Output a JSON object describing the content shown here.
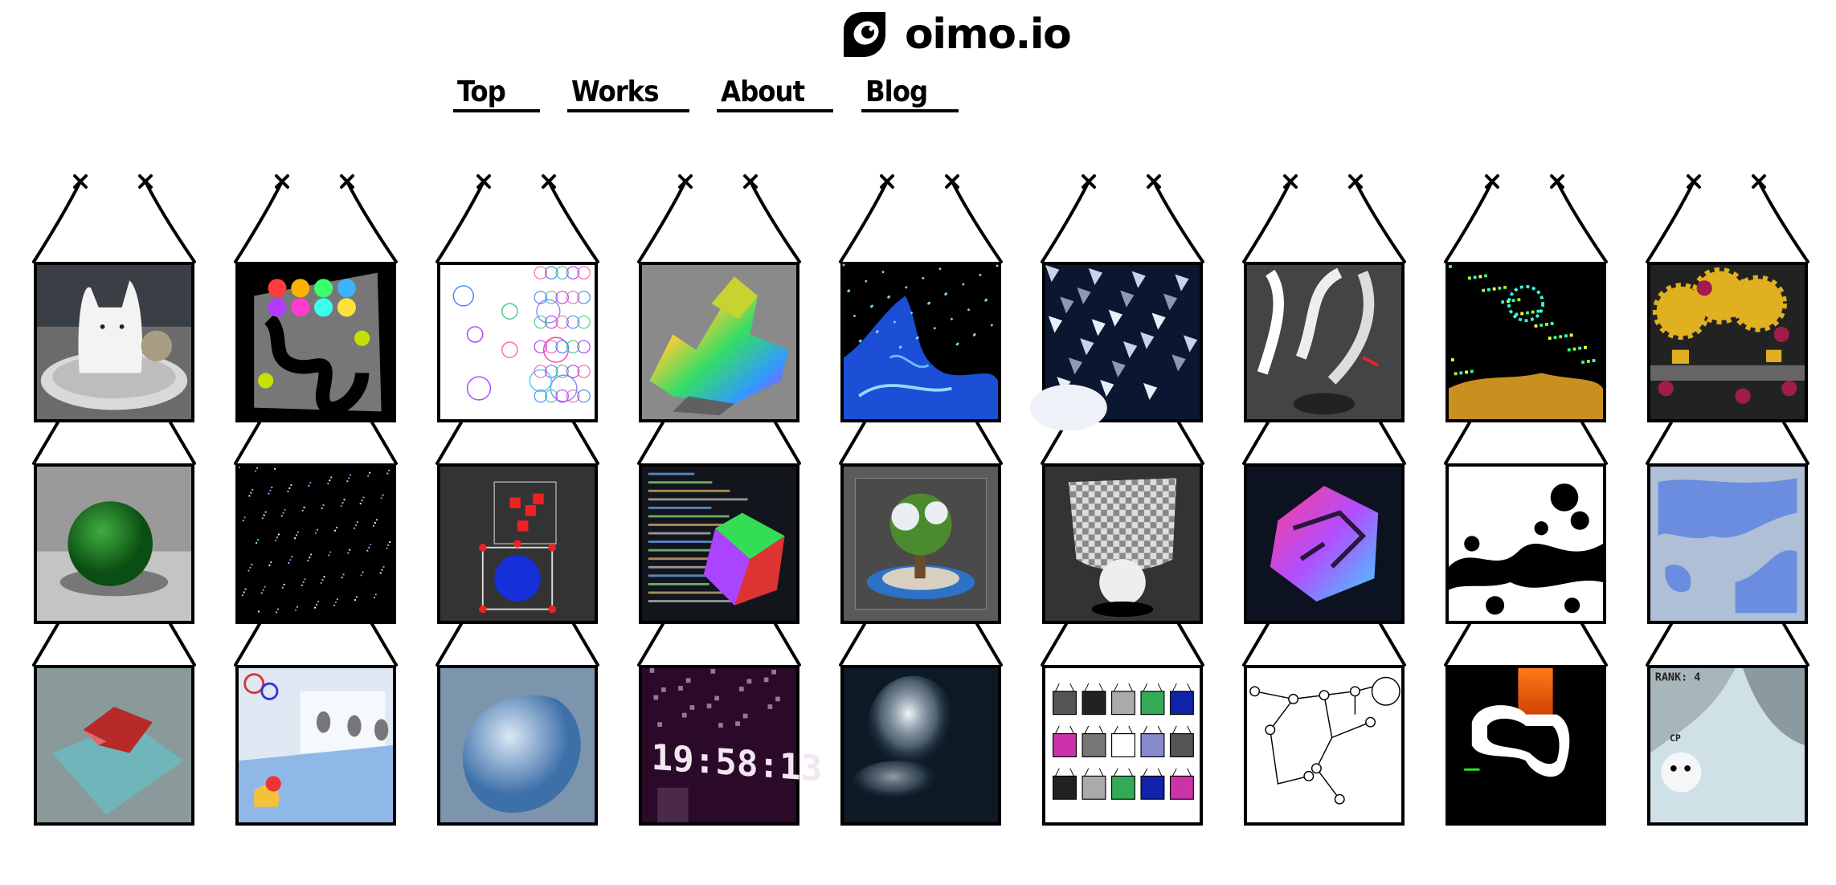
{
  "site": {
    "title": "oimo.io",
    "logo_icon": "eye-logo-icon"
  },
  "nav": {
    "items": [
      {
        "label": "Top"
      },
      {
        "label": "Works"
      },
      {
        "label": "About"
      },
      {
        "label": "Blog"
      }
    ]
  },
  "colors": {
    "ink": "#000000",
    "background": "#ffffff"
  },
  "works": {
    "columns": 9,
    "rows": 3,
    "hanger_icon": "cross-pin-icon",
    "items": [
      {
        "thumb": "clay-cat-figure"
      },
      {
        "thumb": "colorful-blobs-track"
      },
      {
        "thumb": "voronoi-bubbles"
      },
      {
        "thumb": "rainbow-terrain-3d"
      },
      {
        "thumb": "blue-fluid-coast"
      },
      {
        "thumb": "shattered-shards"
      },
      {
        "thumb": "white-ribbons-gray"
      },
      {
        "thumb": "gold-particles-dark"
      },
      {
        "thumb": "yellow-gears-machine"
      },
      {
        "thumb": "green-fuzzy-sphere"
      },
      {
        "thumb": "dot-pattern-dark"
      },
      {
        "thumb": "physics-box-red-blue"
      },
      {
        "thumb": "shader-code-cube"
      },
      {
        "thumb": "tree-in-glass-box"
      },
      {
        "thumb": "checker-cloth-drape"
      },
      {
        "thumb": "neon-3d-maze"
      },
      {
        "thumb": "ink-splash-bw"
      },
      {
        "thumb": "blue-paint-map"
      },
      {
        "thumb": "water-cloth-pool"
      },
      {
        "thumb": "bath-water-simulation"
      },
      {
        "thumb": "water-bubble-blob"
      },
      {
        "thumb": "pixel-clock-19-58-13"
      },
      {
        "thumb": "smoke-dark-blue"
      },
      {
        "thumb": "works-grid-mini"
      },
      {
        "thumb": "node-graph-lines"
      },
      {
        "thumb": "lava-blob-black"
      },
      {
        "thumb": "snow-slope-racer"
      }
    ]
  }
}
